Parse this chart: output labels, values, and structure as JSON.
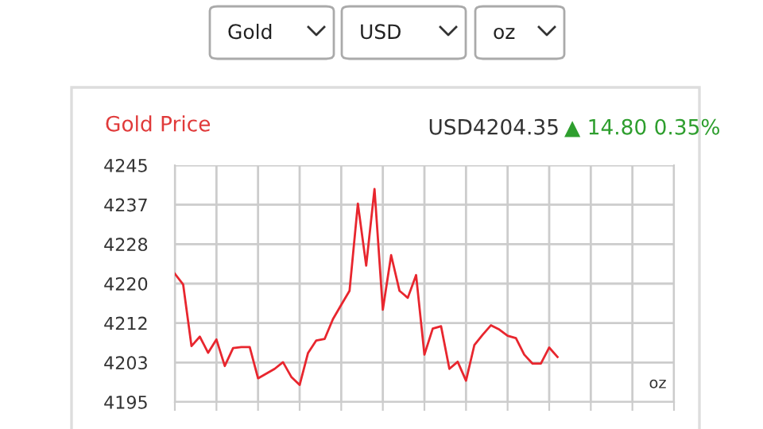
{
  "chart_data": {
    "type": "line",
    "title": "Gold Price",
    "subtitle": "USD4204.35",
    "annotations": [
      "▲ 14.80 0.35%",
      "oz",
      "Gold",
      "USD",
      "oz"
    ],
    "categories": [
      null,
      null,
      null,
      null,
      null,
      null,
      null,
      null,
      null,
      null,
      null,
      null,
      null,
      null,
      null,
      null,
      null,
      null,
      null,
      null,
      null,
      null,
      null,
      null,
      null,
      null,
      null,
      null,
      null,
      null,
      null,
      null,
      null,
      null,
      null,
      null,
      null,
      null,
      null,
      null,
      null,
      null,
      null,
      null,
      null,
      null,
      null,
      null,
      null,
      null,
      null,
      null,
      null,
      null,
      null,
      null,
      null,
      null,
      null,
      null,
      null
    ],
    "ylim": [
      4195,
      4245
    ],
    "yticks": [
      {
        "value": 4195,
        "label": "4195"
      },
      {
        "value": 4203.33,
        "label": "4203"
      },
      {
        "value": 4211.67,
        "label": "4212"
      },
      {
        "value": 4220,
        "label": "4220"
      },
      {
        "value": 4228.33,
        "label": "4228"
      },
      {
        "value": 4236.67,
        "label": "4237"
      },
      {
        "value": 4245,
        "label": "4245"
      }
    ],
    "tick_labels": "y",
    "grid": true,
    "line_style": "solid",
    "series": [
      {
        "color": "#e8262e",
        "values": [
          4222.1,
          4219.8,
          4206.8,
          4208.8,
          4205.4,
          4208.2,
          4202.6,
          4206.4,
          4206.6,
          4206.6,
          4200.0,
          4201.0,
          4202.0,
          4203.4,
          4200.3,
          4198.6,
          4205.3,
          4208.0,
          4208.3,
          4212.5,
          4215.5,
          4218.5,
          4236.9,
          4223.8,
          4240.0,
          4214.5,
          4226.0,
          4218.5,
          4217.0,
          4221.8,
          4205.0,
          4210.5,
          4211.0,
          4202.0,
          4203.5,
          4199.5,
          4207.0,
          4209.2,
          4211.2,
          4210.3,
          4209.0,
          4208.5,
          4205.0,
          4203.1,
          4203.1,
          4206.5,
          4204.5,
          null,
          null,
          null,
          null,
          null,
          null,
          null,
          null,
          null,
          null,
          null,
          null,
          null,
          null
        ]
      }
    ]
  }
}
